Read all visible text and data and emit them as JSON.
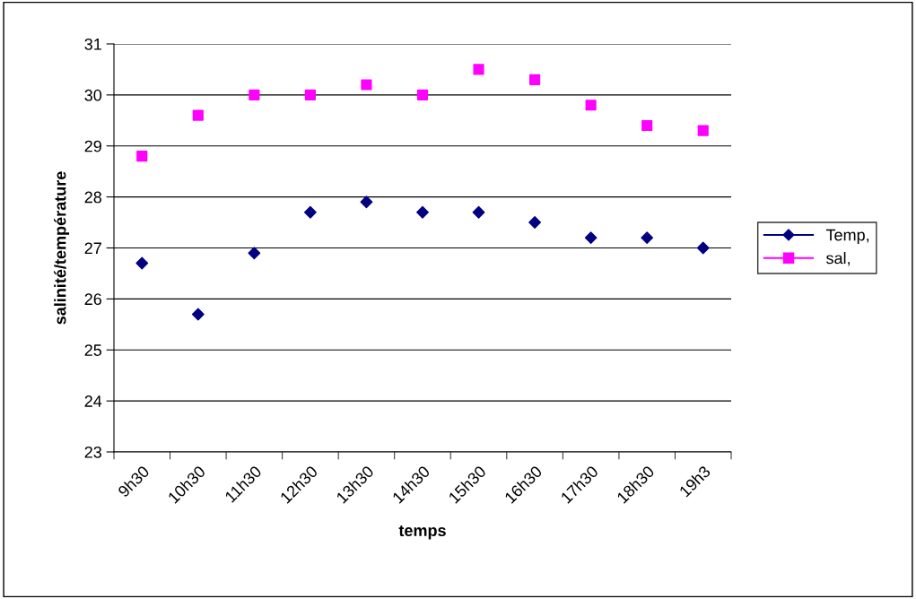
{
  "chart_data": {
    "type": "scatter",
    "xlabel": "temps",
    "ylabel": "salinité/température",
    "categories": [
      "9h30",
      "10h30",
      "11h30",
      "12h30",
      "13h30",
      "14h30",
      "15h30",
      "16h30",
      "17h30",
      "18h30",
      "19h3"
    ],
    "series": [
      {
        "name": "Temp,",
        "color": "#000080",
        "marker": "diamond",
        "values": [
          26.7,
          25.7,
          26.9,
          27.7,
          27.9,
          27.7,
          27.7,
          27.5,
          27.2,
          27.2,
          27.0
        ]
      },
      {
        "name": "sal,",
        "color": "#ff00ff",
        "marker": "square",
        "values": [
          28.8,
          29.6,
          30.0,
          30.0,
          30.2,
          30.0,
          30.5,
          30.3,
          29.8,
          29.4,
          29.3
        ]
      }
    ],
    "ylim": [
      23,
      31
    ],
    "yticks": [
      23,
      24,
      25,
      26,
      27,
      28,
      29,
      30,
      31
    ],
    "grid": "y",
    "legend": "right"
  }
}
